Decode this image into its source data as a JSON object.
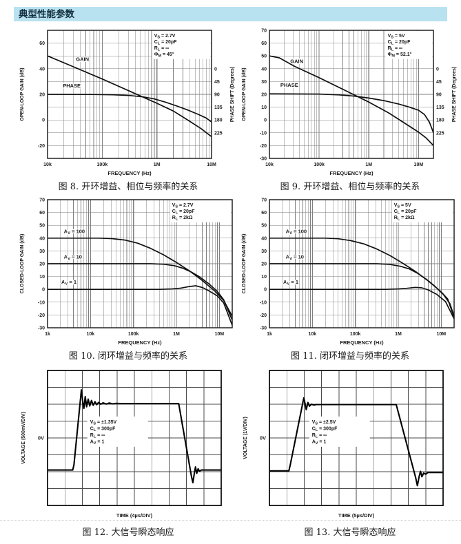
{
  "header": {
    "title": "典型性能参数"
  },
  "colors": {
    "header_bg": "#b9e2f1",
    "curve": "#111111",
    "grid": "#7f7f7f",
    "text": "#1a1a1a"
  },
  "chart_data": [
    {
      "id": "fig8",
      "type": "line",
      "kind": "freq",
      "xscale": "log",
      "caption": "图 8. 开环增益、相位与频率的关系",
      "xlabel": "FREQUENCY (Hz)",
      "ylabel_left": "OPEN-LOOP GAIN (dB)",
      "ylabel_right": "PHASE SHIFT (Degrees)",
      "xlim_log": [
        4,
        7
      ],
      "ylim": [
        -30,
        70
      ],
      "xticks": [
        {
          "log": 4,
          "label": "10k"
        },
        {
          "log": 5,
          "label": "100k"
        },
        {
          "log": 6,
          "label": "1M"
        },
        {
          "log": 7,
          "label": "10M"
        }
      ],
      "yticks_left": [
        60,
        40,
        20,
        0,
        -20
      ],
      "yticks_right_deg": [
        0,
        45,
        90,
        135,
        180,
        225
      ],
      "right_axis": {
        "db_at_0deg": 40,
        "deg_per_10db": 45
      },
      "cond_box": {
        "pos_log_db": [
          5.95,
          68.5
        ],
        "lines": [
          [
            "V",
            "S",
            " = 2.7V"
          ],
          [
            "C",
            "L",
            " = 20pF"
          ],
          [
            "R",
            "L",
            " = ∞"
          ],
          [
            "Φ",
            "M",
            " = 45°"
          ]
        ]
      },
      "series": [
        {
          "name": "GAIN",
          "axis": "left",
          "label": [
            "GAIN"
          ],
          "label_at": [
            4.52,
            46
          ],
          "points": [
            [
              4,
              50
            ],
            [
              4.5,
              41
            ],
            [
              5,
              32
            ],
            [
              5.5,
              22.5
            ],
            [
              6,
              13
            ],
            [
              6.3,
              7
            ],
            [
              6.6,
              -1
            ],
            [
              6.8,
              -6.5
            ],
            [
              7,
              -13
            ]
          ]
        },
        {
          "name": "PHASE",
          "axis": "right",
          "label": [
            "PHASE"
          ],
          "label_at": [
            4.28,
            25.5
          ],
          "points_deg": [
            [
              4,
              90
            ],
            [
              4.8,
              90.5
            ],
            [
              5.2,
              91.5
            ],
            [
              5.5,
              94
            ],
            [
              5.75,
              99
            ],
            [
              5.95,
              106
            ],
            [
              6.15,
              117
            ],
            [
              6.35,
              130
            ],
            [
              6.55,
              144
            ],
            [
              6.75,
              160
            ],
            [
              6.9,
              173
            ],
            [
              7,
              187
            ]
          ]
        }
      ]
    },
    {
      "id": "fig9",
      "type": "line",
      "kind": "freq",
      "xscale": "log",
      "caption": "图 9. 开环增益、相位与频率的关系",
      "xlabel": "FREQUENCY (Hz)",
      "ylabel_left": "OPEN-LOOP GAIN (dB)",
      "ylabel_right": "PHASE SHIFT (Degrees)",
      "xlim_log": [
        4,
        7.3
      ],
      "ylim": [
        -30,
        70
      ],
      "xticks": [
        {
          "log": 4,
          "label": "10k"
        },
        {
          "log": 5,
          "label": "100k"
        },
        {
          "log": 6,
          "label": "1M"
        },
        {
          "log": 7,
          "label": "10M"
        }
      ],
      "yticks_left": [
        70,
        60,
        50,
        40,
        30,
        20,
        10,
        0,
        -10,
        -20,
        -30
      ],
      "yticks_right_deg": [
        0,
        45,
        90,
        135,
        180,
        225
      ],
      "right_axis": {
        "db_at_0deg": 40,
        "deg_per_10db": 45
      },
      "cond_box": {
        "pos_log_db": [
          6.38,
          68.5
        ],
        "lines": [
          [
            "V",
            "S",
            " = 5V"
          ],
          [
            "C",
            "L",
            " = 20pF"
          ],
          [
            "R",
            "L",
            " = ∞"
          ],
          [
            "Φ",
            "M",
            " = 52.1°"
          ]
        ]
      },
      "series": [
        {
          "name": "GAIN",
          "axis": "left",
          "label": [
            "GAIN"
          ],
          "label_at": [
            4.42,
            44.5
          ],
          "points": [
            [
              4,
              50
            ],
            [
              4.2,
              48.5
            ],
            [
              4.5,
              42
            ],
            [
              5,
              33
            ],
            [
              5.5,
              23.5
            ],
            [
              6,
              14
            ],
            [
              6.4,
              5.5
            ],
            [
              6.7,
              -2
            ],
            [
              7,
              -9.5
            ],
            [
              7.15,
              -14
            ],
            [
              7.3,
              -20
            ]
          ]
        },
        {
          "name": "PHASE",
          "axis": "right",
          "label": [
            "PHASE"
          ],
          "label_at": [
            4.22,
            26
          ],
          "points_deg": [
            [
              4,
              88
            ],
            [
              5,
              89
            ],
            [
              5.4,
              92
            ],
            [
              5.7,
              96
            ],
            [
              6,
              103
            ],
            [
              6.3,
              112
            ],
            [
              6.6,
              124
            ],
            [
              6.8,
              134
            ],
            [
              7,
              146
            ],
            [
              7.12,
              161
            ],
            [
              7.22,
              188
            ],
            [
              7.3,
              225
            ]
          ]
        }
      ]
    },
    {
      "id": "fig10",
      "type": "line",
      "kind": "freq",
      "xscale": "log",
      "caption": "图 10. 闭环增益与频率的关系",
      "xlabel": "FREQUENCY (Hz)",
      "ylabel_left": "CLOSED-LOOP GAIN (dB)",
      "xlim_log": [
        3,
        7.3
      ],
      "ylim": [
        -30,
        70
      ],
      "xticks": [
        {
          "log": 3,
          "label": "1k"
        },
        {
          "log": 4,
          "label": "10k"
        },
        {
          "log": 5,
          "label": "100k"
        },
        {
          "log": 6,
          "label": "1M"
        },
        {
          "log": 7,
          "label": "10M"
        }
      ],
      "yticks_left": [
        70,
        60,
        50,
        40,
        30,
        20,
        10,
        0,
        -10,
        -20,
        -30
      ],
      "cond_box": {
        "pos_log_db": [
          5.9,
          68.5
        ],
        "lines": [
          [
            "V",
            "S",
            " = 2.7V"
          ],
          [
            "C",
            "L",
            " = 20pF"
          ],
          [
            "R",
            "L",
            " = 2kΩ"
          ]
        ]
      },
      "series": [
        {
          "name": "AV100",
          "axis": "left",
          "label": [
            "A",
            "V",
            " = 100"
          ],
          "label_at": [
            3.38,
            44
          ],
          "points": [
            [
              3,
              40
            ],
            [
              4.2,
              40
            ],
            [
              4.5,
              39.6
            ],
            [
              4.8,
              38.5
            ],
            [
              5.1,
              36
            ],
            [
              5.4,
              32
            ],
            [
              5.7,
              27
            ],
            [
              6,
              21
            ],
            [
              6.3,
              14.5
            ],
            [
              6.6,
              7
            ],
            [
              6.9,
              -1.5
            ],
            [
              7.1,
              -8.5
            ],
            [
              7.3,
              -21
            ]
          ]
        },
        {
          "name": "AV10",
          "axis": "left",
          "label": [
            "A",
            "V",
            " = 10"
          ],
          "label_at": [
            3.38,
            24
          ],
          "points": [
            [
              3,
              20
            ],
            [
              5.4,
              20
            ],
            [
              5.7,
              19.6
            ],
            [
              5.95,
              18.5
            ],
            [
              6.15,
              16.5
            ],
            [
              6.35,
              13.5
            ],
            [
              6.55,
              9.5
            ],
            [
              6.75,
              4.5
            ],
            [
              6.95,
              -1.5
            ],
            [
              7.1,
              -8
            ],
            [
              7.3,
              -24
            ]
          ]
        },
        {
          "name": "AV1",
          "axis": "left",
          "label": [
            "A",
            "V",
            " = 1"
          ],
          "label_at": [
            3.32,
            4.5
          ],
          "points": [
            [
              3,
              0
            ],
            [
              5.6,
              0
            ],
            [
              5.9,
              0.3
            ],
            [
              6.1,
              0.9
            ],
            [
              6.3,
              2.2
            ],
            [
              6.45,
              2.8
            ],
            [
              6.6,
              1.5
            ],
            [
              6.75,
              -1
            ],
            [
              6.95,
              -5
            ],
            [
              7.1,
              -10.5
            ],
            [
              7.3,
              -28
            ]
          ]
        }
      ]
    },
    {
      "id": "fig11",
      "type": "line",
      "kind": "freq",
      "xscale": "log",
      "caption": "图 11. 闭环增益与频率的关系",
      "xlabel": "FREQUENCY (Hz)",
      "ylabel_left": "CLOSED-LOOP GAIN (dB)",
      "xlim_log": [
        3,
        7.3
      ],
      "ylim": [
        -30,
        70
      ],
      "xticks": [
        {
          "log": 3,
          "label": "1k"
        },
        {
          "log": 4,
          "label": "10k"
        },
        {
          "log": 5,
          "label": "100k"
        },
        {
          "log": 6,
          "label": "1M"
        },
        {
          "log": 7,
          "label": "10M"
        }
      ],
      "yticks_left": [
        70,
        60,
        50,
        40,
        30,
        20,
        10,
        0,
        -10,
        -20,
        -30
      ],
      "cond_box": {
        "pos_log_db": [
          5.9,
          68.5
        ],
        "lines": [
          [
            "V",
            "S",
            " = 5V"
          ],
          [
            "C",
            "L",
            " = 20pF"
          ],
          [
            "R",
            "L",
            " = 2kΩ"
          ]
        ]
      },
      "series": [
        {
          "name": "AV100",
          "axis": "left",
          "label": [
            "A",
            "V",
            " = 100"
          ],
          "label_at": [
            3.38,
            44
          ],
          "points": [
            [
              3,
              40
            ],
            [
              4.3,
              40
            ],
            [
              4.6,
              39.5
            ],
            [
              4.9,
              38
            ],
            [
              5.2,
              35.5
            ],
            [
              5.5,
              31.5
            ],
            [
              5.8,
              26.5
            ],
            [
              6.1,
              20.5
            ],
            [
              6.4,
              14
            ],
            [
              6.7,
              6.5
            ],
            [
              7,
              -2
            ],
            [
              7.15,
              -7.5
            ],
            [
              7.3,
              -22
            ]
          ]
        },
        {
          "name": "AV10",
          "axis": "left",
          "label": [
            "A",
            "V",
            " = 10"
          ],
          "label_at": [
            3.38,
            24
          ],
          "points": [
            [
              3,
              20
            ],
            [
              5.5,
              20
            ],
            [
              5.8,
              19.5
            ],
            [
              6.05,
              18
            ],
            [
              6.25,
              16
            ],
            [
              6.45,
              12.5
            ],
            [
              6.65,
              8
            ],
            [
              6.85,
              2.5
            ],
            [
              7.05,
              -4
            ],
            [
              7.2,
              -11
            ],
            [
              7.3,
              -21
            ]
          ]
        },
        {
          "name": "AV1",
          "axis": "left",
          "label": [
            "A",
            "V",
            " = 1"
          ],
          "label_at": [
            3.32,
            4.5
          ],
          "points": [
            [
              3,
              0
            ],
            [
              5.7,
              0
            ],
            [
              6,
              0.3
            ],
            [
              6.2,
              0.8
            ],
            [
              6.4,
              1.5
            ],
            [
              6.55,
              1.2
            ],
            [
              6.7,
              -0.5
            ],
            [
              6.9,
              -4
            ],
            [
              7.1,
              -9.5
            ],
            [
              7.3,
              -23
            ]
          ]
        }
      ]
    },
    {
      "id": "fig12",
      "type": "line",
      "kind": "scope",
      "caption": "图 12. 大信号瞬态响应",
      "xlabel": "TIME (4µs/DIV)",
      "ylabel": "VOLTAGE (500mV/DIV)",
      "zero_label": "0V",
      "grid_divs": [
        10,
        8
      ],
      "cond_box": {
        "pos_div": [
          2.45,
          2.85
        ],
        "lines": [
          [
            "V",
            "S",
            " = ±1.35V"
          ],
          [
            "C",
            "L",
            " = 300pF"
          ],
          [
            "R",
            "L",
            " = ∞"
          ],
          [
            "A",
            "V",
            " = 1"
          ]
        ]
      },
      "waveform": [
        [
          0,
          5.9
        ],
        [
          1.45,
          5.9
        ],
        [
          1.52,
          5.6
        ],
        [
          1.95,
          1.15
        ],
        [
          2.03,
          1.9
        ],
        [
          2.09,
          2.25
        ],
        [
          2.17,
          1.55
        ],
        [
          2.25,
          2.15
        ],
        [
          2.34,
          1.7
        ],
        [
          2.43,
          2.1
        ],
        [
          2.53,
          1.78
        ],
        [
          2.63,
          2.06
        ],
        [
          2.73,
          1.85
        ],
        [
          2.83,
          2.03
        ],
        [
          2.94,
          1.89
        ],
        [
          3.06,
          2.0
        ],
        [
          3.2,
          1.92
        ],
        [
          3.38,
          1.99
        ],
        [
          3.56,
          1.93
        ],
        [
          3.75,
          1.98
        ],
        [
          3.95,
          1.95
        ],
        [
          4.2,
          1.96
        ],
        [
          7.55,
          1.96
        ],
        [
          8.28,
          6.25
        ],
        [
          8.37,
          6.65
        ],
        [
          8.46,
          6.05
        ],
        [
          8.52,
          5.72
        ],
        [
          8.59,
          6.1
        ],
        [
          8.67,
          5.83
        ],
        [
          8.75,
          5.97
        ],
        [
          8.85,
          5.9
        ],
        [
          10,
          5.9
        ]
      ]
    },
    {
      "id": "fig13",
      "type": "line",
      "kind": "scope",
      "caption": "图 13. 大信号瞬态响应",
      "xlabel": "TIME (5µs/DIV)",
      "ylabel": "VOLTAGE (1V/DIV)",
      "zero_label": "0V",
      "grid_divs": [
        10,
        8
      ],
      "cond_box": {
        "pos_div": [
          2.45,
          2.85
        ],
        "lines": [
          [
            "V",
            "S",
            " = ±2.5V"
          ],
          [
            "C",
            "L",
            " = 300pF"
          ],
          [
            "R",
            "L",
            " = ∞"
          ],
          [
            "A",
            "V",
            " = 1"
          ]
        ]
      },
      "waveform": [
        [
          0,
          5.95
        ],
        [
          1.12,
          5.95
        ],
        [
          1.2,
          5.6
        ],
        [
          1.98,
          1.62
        ],
        [
          2.06,
          2.0
        ],
        [
          2.12,
          2.32
        ],
        [
          2.22,
          1.9
        ],
        [
          2.3,
          2.12
        ],
        [
          2.42,
          2.0
        ],
        [
          2.55,
          2.05
        ],
        [
          2.7,
          2.02
        ],
        [
          7.3,
          2.02
        ],
        [
          8.42,
          6.35
        ],
        [
          8.52,
          6.83
        ],
        [
          8.62,
          6.3
        ],
        [
          8.7,
          5.98
        ],
        [
          8.78,
          6.3
        ],
        [
          8.88,
          6.08
        ],
        [
          9.0,
          6.15
        ],
        [
          9.12,
          6.05
        ],
        [
          10,
          6.05
        ]
      ]
    }
  ]
}
